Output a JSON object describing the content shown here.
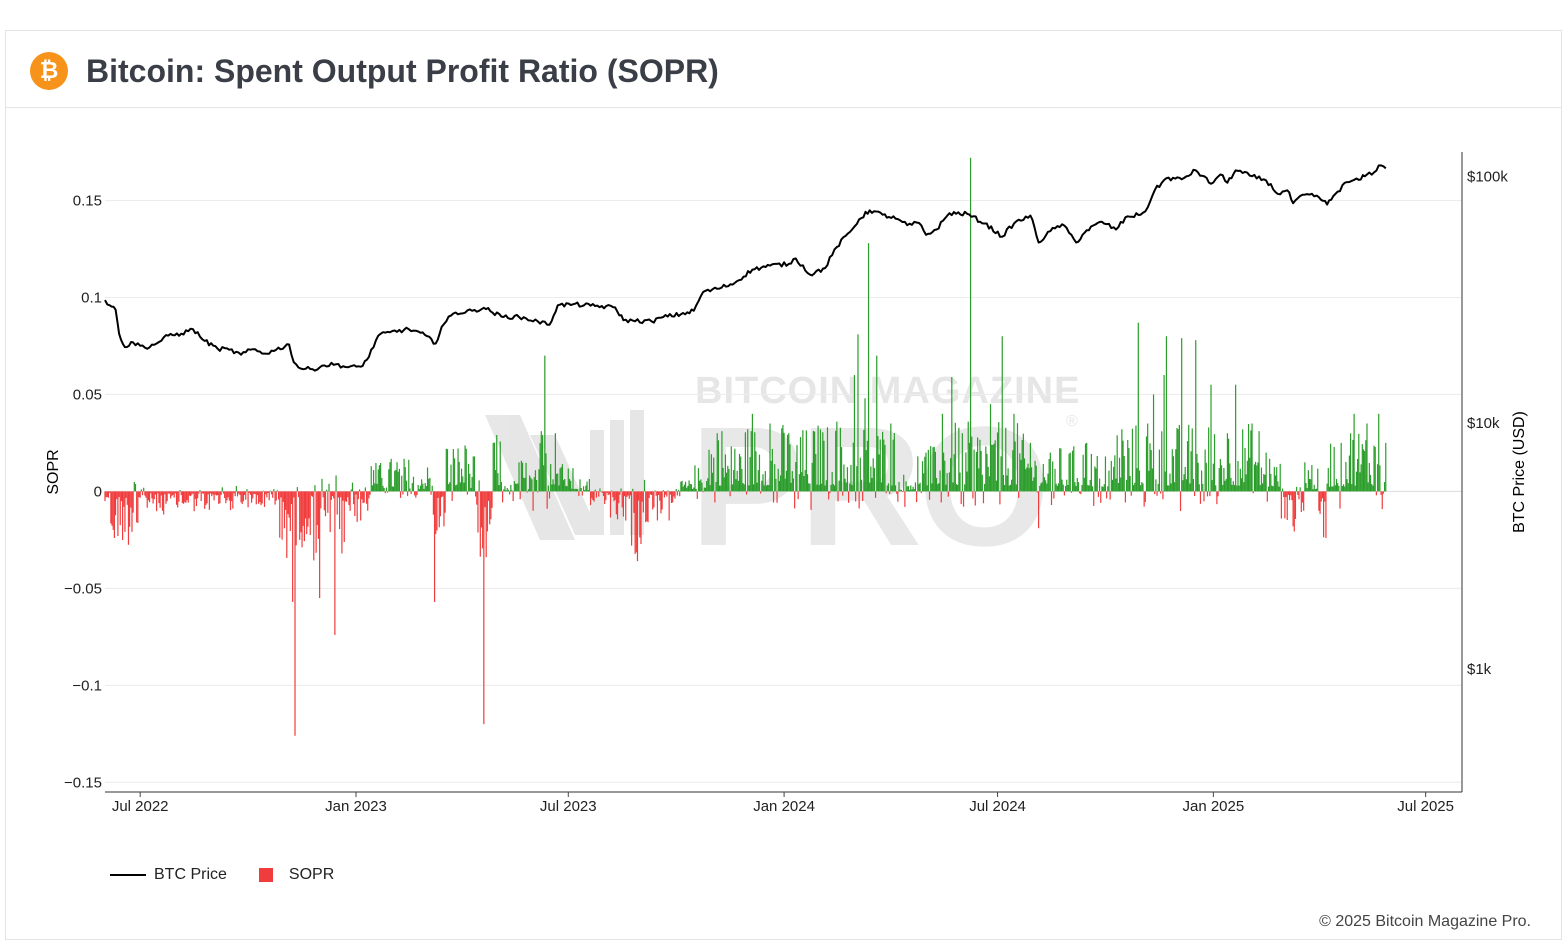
{
  "header": {
    "title": "Bitcoin: Spent Output Profit Ratio (SOPR)",
    "logo_symbol": "₿",
    "logo_color": "#f7931a"
  },
  "watermark": {
    "brand": "BITCOIN MAGAZINE",
    "product": "PRO",
    "registered": "®"
  },
  "footer": {
    "copyright": "© 2025 Bitcoin Magazine Pro."
  },
  "chart_data": {
    "type": "bar",
    "xlabel": "",
    "ylabel": "SOPR",
    "y2label": "BTC Price (USD)",
    "ylim": [
      -0.155,
      0.175
    ],
    "y_ticks": [
      0.15,
      0.1,
      0.05,
      0,
      -0.05,
      -0.1,
      -0.15
    ],
    "y_tick_labels": [
      "0.15",
      "0.1",
      "0.05",
      "0",
      "−0.05",
      "−0.1",
      "−0.15"
    ],
    "y2_scale": "log",
    "y2_ticks": [
      100000,
      10000,
      1000
    ],
    "y2_tick_labels": [
      "$100k",
      "$10k",
      "$1k"
    ],
    "xlim": [
      "2022-06-01",
      "2025-08-01"
    ],
    "x_ticks": [
      "2022-07-01",
      "2023-01-01",
      "2023-07-01",
      "2024-01-01",
      "2024-07-01",
      "2025-01-01",
      "2025-07-01"
    ],
    "x_tick_labels": [
      "Jul 2022",
      "Jan 2023",
      "Jul 2023",
      "Jan 2024",
      "Jul 2024",
      "Jan 2025",
      "Jul 2025"
    ],
    "grid": true,
    "legend": "bottom-left",
    "colors": {
      "positive": "#2a9d2a",
      "negative": "#f03c3c",
      "price": "#000000"
    },
    "series": [
      {
        "name": "BTC Price",
        "type": "line",
        "axis": "right",
        "x": [
          "2022-06-01",
          "2022-06-05",
          "2022-06-10",
          "2022-06-13",
          "2022-06-18",
          "2022-06-25",
          "2022-07-05",
          "2022-07-15",
          "2022-07-25",
          "2022-08-05",
          "2022-08-15",
          "2022-08-25",
          "2022-09-05",
          "2022-09-15",
          "2022-09-25",
          "2022-10-05",
          "2022-10-15",
          "2022-10-25",
          "2022-11-05",
          "2022-11-09",
          "2022-11-15",
          "2022-11-25",
          "2022-12-05",
          "2022-12-15",
          "2022-12-25",
          "2023-01-05",
          "2023-01-12",
          "2023-01-20",
          "2023-01-30",
          "2023-02-15",
          "2023-02-25",
          "2023-03-10",
          "2023-03-15",
          "2023-03-25",
          "2023-04-10",
          "2023-04-20",
          "2023-05-05",
          "2023-05-20",
          "2023-06-05",
          "2023-06-15",
          "2023-06-22",
          "2023-07-05",
          "2023-07-20",
          "2023-08-10",
          "2023-08-17",
          "2023-08-25",
          "2023-09-10",
          "2023-09-20",
          "2023-10-05",
          "2023-10-16",
          "2023-10-24",
          "2023-11-05",
          "2023-11-20",
          "2023-12-05",
          "2023-12-20",
          "2024-01-05",
          "2024-01-11",
          "2024-01-23",
          "2024-02-05",
          "2024-02-15",
          "2024-02-28",
          "2024-03-05",
          "2024-03-14",
          "2024-03-25",
          "2024-04-05",
          "2024-04-15",
          "2024-04-25",
          "2024-05-01",
          "2024-05-10",
          "2024-05-21",
          "2024-06-05",
          "2024-06-20",
          "2024-07-05",
          "2024-07-15",
          "2024-07-29",
          "2024-08-05",
          "2024-08-15",
          "2024-08-25",
          "2024-09-06",
          "2024-09-15",
          "2024-09-28",
          "2024-10-10",
          "2024-10-20",
          "2024-10-31",
          "2024-11-06",
          "2024-11-12",
          "2024-11-22",
          "2024-12-05",
          "2024-12-17",
          "2024-12-30",
          "2025-01-07",
          "2025-01-13",
          "2025-01-20",
          "2025-02-01",
          "2025-02-15",
          "2025-02-25",
          "2025-03-05",
          "2025-03-10",
          "2025-03-20",
          "2025-04-01",
          "2025-04-08",
          "2025-04-15",
          "2025-04-25",
          "2025-05-05",
          "2025-05-12",
          "2025-05-18",
          "2025-05-22",
          "2025-05-28"
        ],
        "values": [
          31500,
          30000,
          28800,
          23000,
          20300,
          21200,
          20200,
          21000,
          22600,
          23000,
          24000,
          21500,
          20000,
          19800,
          18900,
          19900,
          19100,
          19800,
          20800,
          17600,
          16600,
          16500,
          17100,
          17300,
          16800,
          16900,
          18500,
          22600,
          23300,
          24000,
          23200,
          21000,
          24500,
          27800,
          28500,
          29300,
          27000,
          26900,
          25800,
          25000,
          30000,
          30300,
          29900,
          29400,
          26100,
          26000,
          25800,
          26900,
          27600,
          28500,
          34000,
          35000,
          37000,
          41900,
          43500,
          44200,
          46500,
          40000,
          42500,
          51800,
          61000,
          67000,
          73000,
          70000,
          67500,
          63500,
          64800,
          58000,
          61000,
          71000,
          70600,
          64500,
          57000,
          64500,
          69500,
          54000,
          60000,
          64000,
          54000,
          60500,
          65500,
          61000,
          69000,
          70000,
          75000,
          88000,
          98500,
          97500,
          106000,
          93500,
          102000,
          94500,
          106000,
          101000,
          96500,
          85000,
          88000,
          78000,
          84500,
          82500,
          77000,
          85000,
          95000,
          97000,
          102000,
          104000,
          111000,
          108000
        ]
      },
      {
        "name": "SOPR",
        "type": "bar",
        "axis": "left",
        "note": "daily values, red below 0, green above 0"
      }
    ],
    "sopr_points": [
      [
        "2022-06-01",
        -0.005
      ],
      [
        "2022-06-09",
        -0.024
      ],
      [
        "2022-07-20",
        -0.01
      ],
      [
        "2022-08-25",
        -0.009
      ],
      [
        "2022-10-15",
        -0.008
      ],
      [
        "2022-11-08",
        -0.057
      ],
      [
        "2022-11-10",
        -0.126
      ],
      [
        "2022-11-14",
        -0.025
      ],
      [
        "2022-11-20",
        -0.022
      ],
      [
        "2022-12-01",
        -0.055
      ],
      [
        "2022-12-10",
        -0.021
      ],
      [
        "2022-12-14",
        -0.074
      ],
      [
        "2022-12-20",
        -0.032
      ],
      [
        "2023-01-05",
        -0.015
      ],
      [
        "2023-01-14",
        0.013
      ],
      [
        "2023-02-05",
        0.015
      ],
      [
        "2023-03-08",
        -0.012
      ],
      [
        "2023-03-09",
        -0.057
      ],
      [
        "2023-03-10",
        -0.022
      ],
      [
        "2023-03-19",
        0.022
      ],
      [
        "2023-04-05",
        0.022
      ],
      [
        "2023-04-12",
        0.018
      ],
      [
        "2023-04-20",
        -0.12
      ],
      [
        "2023-04-28",
        0.025
      ],
      [
        "2023-05-15",
        -0.005
      ],
      [
        "2023-05-20",
        0.015
      ],
      [
        "2023-06-01",
        -0.01
      ],
      [
        "2023-06-11",
        0.07
      ],
      [
        "2023-06-20",
        0.03
      ],
      [
        "2023-07-05",
        0.012
      ],
      [
        "2023-07-20",
        -0.007
      ],
      [
        "2023-08-17",
        -0.013
      ],
      [
        "2023-08-29",
        -0.036
      ],
      [
        "2023-09-15",
        -0.015
      ],
      [
        "2023-10-05",
        0.005
      ],
      [
        "2023-10-20",
        0.012
      ],
      [
        "2023-11-05",
        0.03
      ],
      [
        "2023-11-20",
        0.022
      ],
      [
        "2023-12-05",
        0.04
      ],
      [
        "2023-12-20",
        0.035
      ],
      [
        "2024-01-05",
        0.03
      ],
      [
        "2024-01-15",
        0.028
      ],
      [
        "2024-02-01",
        0.032
      ],
      [
        "2024-02-15",
        0.036
      ],
      [
        "2024-03-01",
        0.06
      ],
      [
        "2024-03-04",
        0.081
      ],
      [
        "2024-03-10",
        0.048
      ],
      [
        "2024-03-13",
        0.128
      ],
      [
        "2024-03-20",
        0.07
      ],
      [
        "2024-04-01",
        0.035
      ],
      [
        "2024-04-13",
        -0.008
      ],
      [
        "2024-05-01",
        0.02
      ],
      [
        "2024-05-15",
        0.04
      ],
      [
        "2024-05-23",
        0.059
      ],
      [
        "2024-06-01",
        0.03
      ],
      [
        "2024-06-08",
        0.172
      ],
      [
        "2024-06-25",
        0.045
      ],
      [
        "2024-07-05",
        0.08
      ],
      [
        "2024-07-15",
        0.04
      ],
      [
        "2024-07-29",
        0.025
      ],
      [
        "2024-08-05",
        -0.019
      ],
      [
        "2024-08-15",
        0.02
      ],
      [
        "2024-09-01",
        0.02
      ],
      [
        "2024-09-15",
        0.025
      ],
      [
        "2024-10-01",
        0.018
      ],
      [
        "2024-10-15",
        0.032
      ],
      [
        "2024-10-29",
        0.087
      ],
      [
        "2024-11-06",
        0.035
      ],
      [
        "2024-11-11",
        0.05
      ],
      [
        "2024-11-20",
        0.06
      ],
      [
        "2024-11-22",
        0.08
      ],
      [
        "2024-12-05",
        0.079
      ],
      [
        "2024-12-17",
        0.078
      ],
      [
        "2024-12-30",
        0.055
      ],
      [
        "2025-01-13",
        0.03
      ],
      [
        "2025-01-20",
        0.055
      ],
      [
        "2025-02-03",
        0.035
      ],
      [
        "2025-02-15",
        0.02
      ],
      [
        "2025-02-28",
        -0.014
      ],
      [
        "2025-03-10",
        -0.018
      ],
      [
        "2025-03-20",
        0.015
      ],
      [
        "2025-04-01",
        -0.01
      ],
      [
        "2025-04-07",
        -0.024
      ],
      [
        "2025-04-20",
        0.025
      ],
      [
        "2025-05-01",
        0.04
      ],
      [
        "2025-05-12",
        0.035
      ],
      [
        "2025-05-22",
        0.04
      ],
      [
        "2025-05-28",
        0.025
      ]
    ]
  },
  "legend": {
    "price_label": "BTC Price",
    "sopr_label": "SOPR"
  }
}
